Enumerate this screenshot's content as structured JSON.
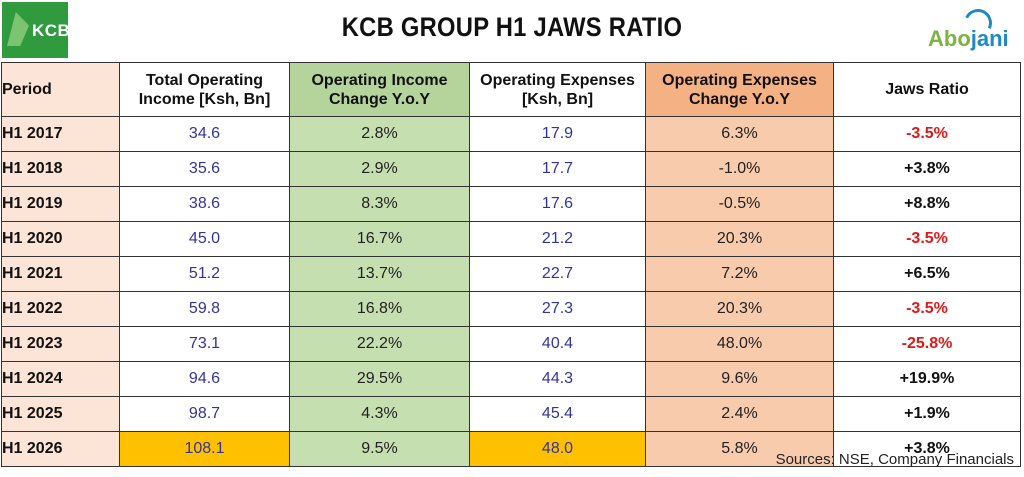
{
  "header": {
    "title": "KCB GROUP H1 JAWS RATIO",
    "left_logo_text": "KCB",
    "right_logo_text_a": "Abo",
    "right_logo_text_b": "jani"
  },
  "table": {
    "headers": {
      "period": "Period",
      "income_1": "Total Operating",
      "income_2": "Income [Ksh, Bn]",
      "income_change_1": "Operating Income",
      "income_change_2": "Change Y.o.Y",
      "expenses_1": "Operating Expenses",
      "expenses_2": "[Ksh, Bn]",
      "expenses_change_1": "Operating Expenses",
      "expenses_change_2": "Change Y.o.Y",
      "jaws": "Jaws Ratio"
    },
    "rows": [
      {
        "period": "H1 2017",
        "income": "34.6",
        "income_change": "2.8%",
        "expenses": "17.9",
        "expenses_change": "6.3%",
        "jaws": "-3.5%"
      },
      {
        "period": "H1 2018",
        "income": "35.6",
        "income_change": "2.9%",
        "expenses": "17.7",
        "expenses_change": "-1.0%",
        "jaws": "+3.8%"
      },
      {
        "period": "H1 2019",
        "income": "38.6",
        "income_change": "8.3%",
        "expenses": "17.6",
        "expenses_change": "-0.5%",
        "jaws": "+8.8%"
      },
      {
        "period": "H1 2020",
        "income": "45.0",
        "income_change": "16.7%",
        "expenses": "21.2",
        "expenses_change": "20.3%",
        "jaws": "-3.5%"
      },
      {
        "period": "H1 2021",
        "income": "51.2",
        "income_change": "13.7%",
        "expenses": "22.7",
        "expenses_change": "7.2%",
        "jaws": "+6.5%"
      },
      {
        "period": "H1 2022",
        "income": "59.8",
        "income_change": "16.8%",
        "expenses": "27.3",
        "expenses_change": "20.3%",
        "jaws": "-3.5%"
      },
      {
        "period": "H1 2023",
        "income": "73.1",
        "income_change": "22.2%",
        "expenses": "40.4",
        "expenses_change": "48.0%",
        "jaws": "-25.8%"
      },
      {
        "period": "H1 2024",
        "income": "94.6",
        "income_change": "29.5%",
        "expenses": "44.3",
        "expenses_change": "9.6%",
        "jaws": "+19.9%"
      },
      {
        "period": "H1 2025",
        "income": "98.7",
        "income_change": "4.3%",
        "expenses": "45.4",
        "expenses_change": "2.4%",
        "jaws": "+1.9%"
      },
      {
        "period": "H1 2026",
        "income": "108.1",
        "income_change": "9.5%",
        "expenses": "48.0",
        "expenses_change": "5.8%",
        "jaws": "+3.8%"
      }
    ]
  },
  "source": "Sources: NSE, Company Financials",
  "colors": {
    "period_bg": "#fce4d6",
    "income_change_bg": "#c6dfb0",
    "expenses_change_bg": "#f8cbad",
    "highlight": "#ffc000",
    "negative": "#e01818",
    "value_text": "#3333a0"
  },
  "chart_data": {
    "type": "table",
    "title": "KCB GROUP H1 JAWS RATIO",
    "columns": [
      "Period",
      "Total Operating Income [Ksh, Bn]",
      "Operating Income Change Y.o.Y",
      "Operating Expenses [Ksh, Bn]",
      "Operating Expenses Change Y.o.Y",
      "Jaws Ratio"
    ],
    "categories": [
      "H1 2017",
      "H1 2018",
      "H1 2019",
      "H1 2020",
      "H1 2021",
      "H1 2022",
      "H1 2023",
      "H1 2024",
      "H1 2025",
      "H1 2026"
    ],
    "series": [
      {
        "name": "Total Operating Income [Ksh, Bn]",
        "values": [
          34.6,
          35.6,
          38.6,
          45.0,
          51.2,
          59.8,
          73.1,
          94.6,
          98.7,
          108.1
        ]
      },
      {
        "name": "Operating Income Change Y.o.Y",
        "values": [
          2.8,
          2.9,
          8.3,
          16.7,
          13.7,
          16.8,
          22.2,
          29.5,
          4.3,
          9.5
        ]
      },
      {
        "name": "Operating Expenses [Ksh, Bn]",
        "values": [
          17.9,
          17.7,
          17.6,
          21.2,
          22.7,
          27.3,
          40.4,
          44.3,
          45.4,
          48.0
        ]
      },
      {
        "name": "Operating Expenses Change Y.o.Y",
        "values": [
          6.3,
          -1.0,
          -0.5,
          20.3,
          7.2,
          20.3,
          48.0,
          9.6,
          2.4,
          5.8
        ]
      },
      {
        "name": "Jaws Ratio",
        "values": [
          -3.5,
          3.8,
          8.8,
          -3.5,
          6.5,
          -3.5,
          -25.8,
          19.9,
          1.9,
          3.8
        ]
      }
    ],
    "highlighted_row": "H1 2026"
  }
}
